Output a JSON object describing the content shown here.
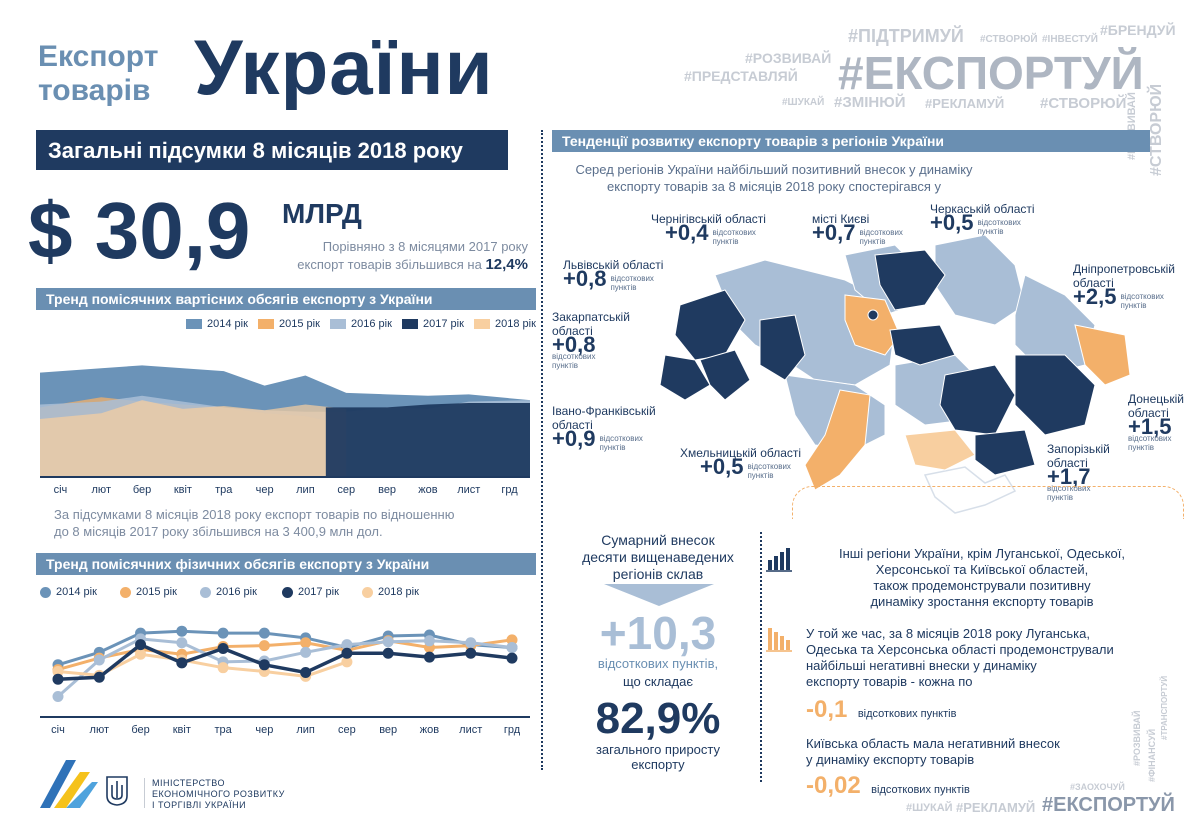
{
  "header": {
    "title_small_1": "Експорт",
    "title_small_2": "товарів",
    "title_big": "України"
  },
  "hashtags": [
    "#ПІДТРИМУЙ",
    "#СТВОРЮЙ",
    "#ІНВЕСТУЙ",
    "#БРЕНДУЙ",
    "#РОЗВИВАЙ",
    "#ЕКСПОРТУЙ",
    "#ПРЕДСТАВЛЯЙ",
    "#ШУКАЙ",
    "#ЗМІНЮЙ",
    "#РЕКЛАМУЙ",
    "#СТВОРЮЙ",
    "#РОЗВИВАЙ",
    "#СТВОРЮЙ",
    "#РОЗВИВАЙ",
    "#ФІНАНСУЙ",
    "#ТРАНСПОРТУЙ",
    "#ЗАОХОЧУЙ",
    "#ШУКАЙ",
    "#РЕКЛАМУЙ",
    "#ЕКСПОРТУЙ"
  ],
  "summary": {
    "banner": "Загальні підсумки 8 місяців 2018 року",
    "amount": "$ 30,9",
    "unit": "МЛРД",
    "note_line1": "Порівняно з 8 місяцями 2017 року",
    "note_line2": "експорт товарів збільшився на",
    "note_pct": "12,4%"
  },
  "value_chart": {
    "title": "Тренд помісячних вартісних обсягів експорту з України",
    "summary_line1": "За підсумками 8 місяців 2018 року експорт товарів по відношенню",
    "summary_line2": "до 8 місяців 2017 року збільшився на 3 400,9 млн дол."
  },
  "volume_chart": {
    "title": "Тренд помісячних фізичних обсягів експорту з України"
  },
  "months": [
    "січ",
    "лют",
    "бер",
    "квіт",
    "тра",
    "чер",
    "лип",
    "сер",
    "вер",
    "жов",
    "лист",
    "грд"
  ],
  "colors": {
    "2014": "#6b93b8",
    "2015": "#f3b06a",
    "2016": "#a9bed6",
    "2017": "#1f3a60",
    "2018": "#f8cfa0"
  },
  "chart_data": [
    {
      "type": "area",
      "categories": [
        "січ",
        "лют",
        "бер",
        "квіт",
        "тра",
        "чер",
        "лип",
        "сер",
        "вер",
        "жов",
        "лист",
        "грд"
      ],
      "ylim": [
        0,
        100
      ],
      "series": [
        {
          "name": "2014 рік",
          "values": [
            72,
            75,
            77,
            75,
            73,
            63,
            70,
            58,
            57,
            56,
            57,
            53
          ]
        },
        {
          "name": "2015 рік",
          "values": [
            48,
            55,
            52,
            50,
            48,
            44,
            42,
            36,
            null,
            null,
            null,
            null
          ]
        },
        {
          "name": "2016 рік",
          "values": [
            50,
            52,
            56,
            52,
            48,
            46,
            45,
            45,
            48,
            47,
            52,
            53
          ]
        },
        {
          "name": "2017 рік",
          "values": [
            null,
            null,
            null,
            null,
            null,
            null,
            null,
            48,
            48,
            50,
            51,
            51
          ]
        },
        {
          "name": "2018 рік",
          "values": [
            40,
            44,
            53,
            47,
            49,
            46,
            50,
            47,
            null,
            null,
            null,
            null
          ]
        }
      ]
    },
    {
      "type": "line",
      "categories": [
        "січ",
        "лют",
        "бер",
        "квіт",
        "тра",
        "чер",
        "лип",
        "сер",
        "вер",
        "жов",
        "лист",
        "грд"
      ],
      "ylim": [
        0,
        100
      ],
      "series": [
        {
          "name": "2014 рік",
          "values": [
            45,
            58,
            78,
            80,
            78,
            78,
            73,
            63,
            75,
            76,
            66,
            63
          ]
        },
        {
          "name": "2015 рік",
          "values": [
            40,
            52,
            61,
            56,
            64,
            65,
            68,
            60,
            70,
            63,
            65,
            71
          ]
        },
        {
          "name": "2016 рік",
          "values": [
            12,
            50,
            72,
            68,
            48,
            49,
            58,
            66,
            69,
            70,
            68,
            63
          ]
        },
        {
          "name": "2017 рік",
          "values": [
            30,
            32,
            66,
            47,
            62,
            45,
            37,
            57,
            57,
            53,
            57,
            52
          ]
        },
        {
          "name": "2018 рік",
          "values": [
            38,
            34,
            56,
            50,
            42,
            38,
            33,
            48,
            null,
            null,
            null,
            null
          ]
        }
      ]
    }
  ],
  "regions_section": {
    "title": "Тенденції розвитку експорту товарів з регіонів України",
    "intro_line1": "Серед регіонів України найбільший позитивний внесок у динаміку",
    "intro_line2": "експорту товарів за 8 місяців 2018 року спостерігався у",
    "unit_small": "відсоткових пунктів",
    "regions": [
      {
        "name": "Чернігівській області",
        "value": "+0,4"
      },
      {
        "name": "місті Києві",
        "value": "+0,7"
      },
      {
        "name": "Черкаській області",
        "value": "+0,5"
      },
      {
        "name": "Львівській області",
        "value": "+0,8"
      },
      {
        "name": "Дніпропетровській області",
        "value": "+2,5"
      },
      {
        "name": "Закарпатській області",
        "value": "+0,8"
      },
      {
        "name": "Донецькій області",
        "value": "+1,5"
      },
      {
        "name": "Івано-Франківській області",
        "value": "+0,9"
      },
      {
        "name": "Хмельницькій області",
        "value": "+0,5"
      },
      {
        "name": "Запорізькій області",
        "value": "+1,7"
      }
    ]
  },
  "total": {
    "line1": "Сумарний внесок",
    "line2": "десяти вищенаведених",
    "line3": "регіонів склав",
    "value": "+10,3",
    "unit": "відсоткових пунктів,",
    "which": "що складає",
    "pct": "82,9%",
    "pct_line1": "загального приросту",
    "pct_line2": "експорту"
  },
  "notes": {
    "pos_line1": "Інші регіони України, крім Луганської, Одеської,",
    "pos_line2": "Херсонської та Київської областей,",
    "pos_line3": "також продемонстрували позитивну",
    "pos_line4": "динаміку зростання експорту товарів",
    "neg_line1": "У той же час, за 8 місяців 2018 року Луганська,",
    "neg_line2": "Одеська та Херсонська області продемонстрували",
    "neg_line3": "найбільші негативні внески у динаміку",
    "neg_line4": "експорту товарів - кожна по",
    "neg_value": "-0,1",
    "neg_unit": "відсоткових пунктів",
    "kyiv_line1": "Київська область мала негативний внесок",
    "kyiv_line2": "у динаміку експорту товарів",
    "kyiv_value": "-0,02",
    "kyiv_unit": "відсоткових пунктів"
  },
  "footer": {
    "ministry_line1": "МІНІСТЕРСТВО",
    "ministry_line2": "ЕКОНОМІЧНОГО РОЗВИТКУ",
    "ministry_line3": "І ТОРГІВЛІ УКРАЇНИ"
  }
}
